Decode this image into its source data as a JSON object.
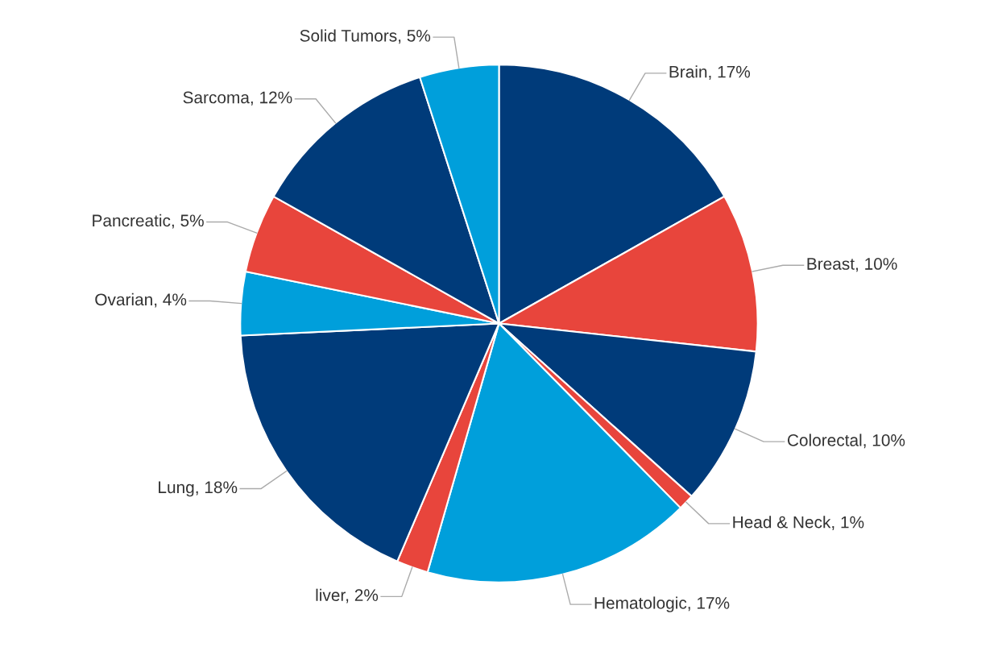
{
  "chart_data": {
    "type": "pie",
    "categories": [
      "Brain",
      "Breast",
      "Colorectal",
      "Head & Neck",
      "Hematologic",
      "liver",
      "Lung",
      "Ovarian",
      "Pancreatic",
      "Sarcoma",
      "Solid Tumors"
    ],
    "values": [
      17,
      10,
      10,
      1,
      17,
      2,
      18,
      4,
      5,
      12,
      5
    ],
    "value_labels": [
      "17%",
      "10%",
      "10%",
      "1%",
      "17%",
      "2%",
      "18%",
      "4%",
      "5%",
      "12%",
      "5%"
    ],
    "colors": [
      "#003b7a",
      "#e8453c",
      "#003b7a",
      "#e8453c",
      "#009fdb",
      "#e8453c",
      "#003b7a",
      "#009fdb",
      "#e8453c",
      "#003b7a",
      "#009fdb"
    ],
    "legend": false
  }
}
